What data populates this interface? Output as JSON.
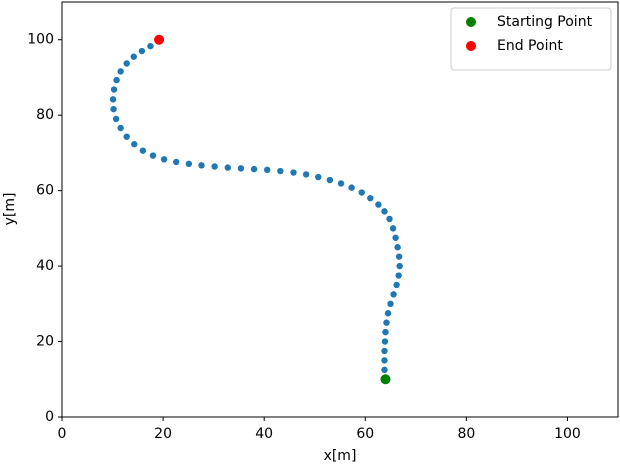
{
  "chart_data": {
    "type": "scatter",
    "xlabel": "x[m]",
    "ylabel": "y[m]",
    "xlim": [
      0,
      110
    ],
    "ylim": [
      0,
      110
    ],
    "xticks": [
      0,
      20,
      40,
      60,
      80,
      100
    ],
    "yticks": [
      0,
      20,
      40,
      60,
      80,
      100
    ],
    "grid": false,
    "legend": "upper right",
    "series": [
      {
        "color": "#1f77b4",
        "x": [
          64,
          63.8,
          63.8,
          63.8,
          63.9,
          64,
          64.2,
          64.5,
          65,
          65.6,
          66.2,
          66.6,
          66.8,
          66.7,
          66.4,
          66,
          65.5,
          64.8,
          63.8,
          62.6,
          61,
          59.3,
          57.3,
          55.2,
          53,
          50.7,
          48.3,
          45.8,
          43.2,
          40.6,
          38,
          35.4,
          32.8,
          30.2,
          27.6,
          25.1,
          22.6,
          20.2,
          18,
          16,
          14.3,
          12.8,
          11.6,
          10.7,
          10.2,
          10.1,
          10.3,
          10.8,
          11.6,
          12.8,
          14.2,
          15.8,
          17.5,
          19.2
        ],
        "y": [
          10,
          12.5,
          15,
          17.5,
          20,
          22.5,
          25,
          27.5,
          30,
          32.5,
          35,
          37.5,
          40,
          42.5,
          45,
          47.5,
          50,
          52.5,
          54.5,
          56.3,
          58,
          59.5,
          60.8,
          61.9,
          62.8,
          63.6,
          64.3,
          64.8,
          65.2,
          65.5,
          65.7,
          65.9,
          66.1,
          66.4,
          66.7,
          67.1,
          67.6,
          68.3,
          69.3,
          70.6,
          72.3,
          74.3,
          76.6,
          79,
          81.6,
          84.2,
          86.8,
          89.3,
          91.6,
          93.7,
          95.5,
          97,
          98.3,
          100
        ],
        "size": 3.2
      },
      {
        "name": "Starting Point",
        "color": "green",
        "x": [
          64
        ],
        "y": [
          10
        ],
        "size": 5
      },
      {
        "name": "End Point",
        "color": "red",
        "x": [
          19.2
        ],
        "y": [
          100
        ],
        "size": 5
      }
    ]
  }
}
